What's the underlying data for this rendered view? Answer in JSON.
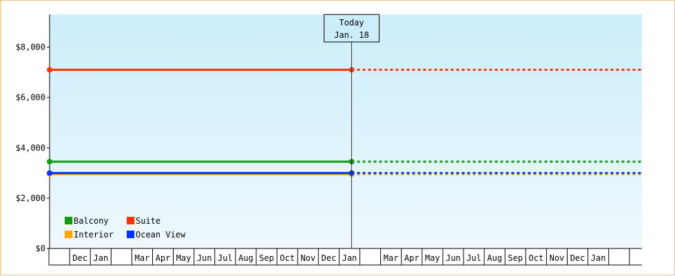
{
  "chart_data": {
    "type": "line",
    "title": "",
    "xlabel": "",
    "ylabel": "",
    "ylim": [
      0,
      9300
    ],
    "yticks": [
      {
        "value": 0,
        "label": "$0"
      },
      {
        "value": 2000,
        "label": "$2,000"
      },
      {
        "value": 4000,
        "label": "$4,000"
      },
      {
        "value": 6000,
        "label": "$6,000"
      },
      {
        "value": 8000,
        "label": "$8,000"
      }
    ],
    "x_start_month": "Nov",
    "x_months": [
      "",
      "Dec",
      "Jan",
      "",
      "Mar",
      "Apr",
      "May",
      "Jun",
      "Jul",
      "Aug",
      "Sep",
      "Oct",
      "Nov",
      "Dec",
      "Jan",
      "",
      "Mar",
      "Apr",
      "May",
      "Jun",
      "Jul",
      "Aug",
      "Sep",
      "Oct",
      "Nov",
      "Dec",
      "Jan",
      ""
    ],
    "today": {
      "line1": "Today",
      "line2": "Jan. 18",
      "month_offset": 14.6
    },
    "background": {
      "top": "#cceefa",
      "bottom": "#eef8fd"
    },
    "legend_position": "bottom-left",
    "series": [
      {
        "name": "Balcony",
        "color": "#119911",
        "value": 3450
      },
      {
        "name": "Suite",
        "color": "#ff3300",
        "value": 7100
      },
      {
        "name": "Interior",
        "color": "#ffa500",
        "value": 2950
      },
      {
        "name": "Ocean View",
        "color": "#0033ff",
        "value": 3000
      }
    ]
  }
}
